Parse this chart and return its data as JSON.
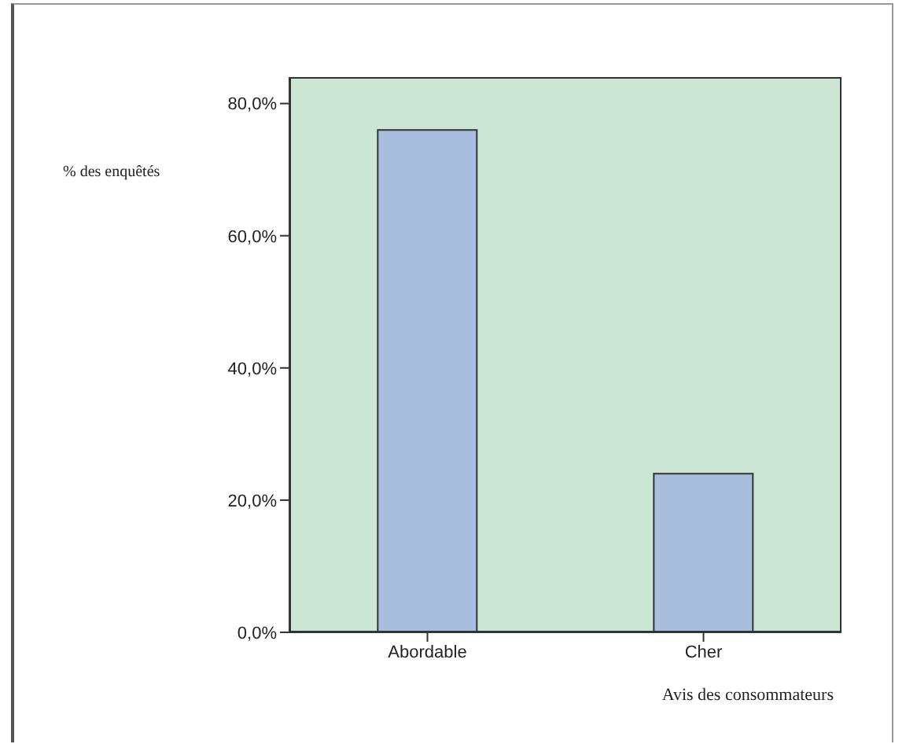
{
  "chart_data": {
    "type": "bar",
    "xlabel": "Avis des consommateurs",
    "ylabel": "% des enquêtés",
    "categories": [
      "Abordable",
      "Cher"
    ],
    "values": [
      76,
      24
    ],
    "color": "#a9bddf",
    "ylim": [
      0,
      84
    ],
    "yticks": [
      {
        "value": 0,
        "label": "0,0%"
      },
      {
        "value": 20,
        "label": "20,0%"
      },
      {
        "value": 40,
        "label": "40,0%"
      },
      {
        "value": 60,
        "label": "60,0%"
      },
      {
        "value": 80,
        "label": "80,0%"
      }
    ],
    "grid": false,
    "legend": false
  }
}
